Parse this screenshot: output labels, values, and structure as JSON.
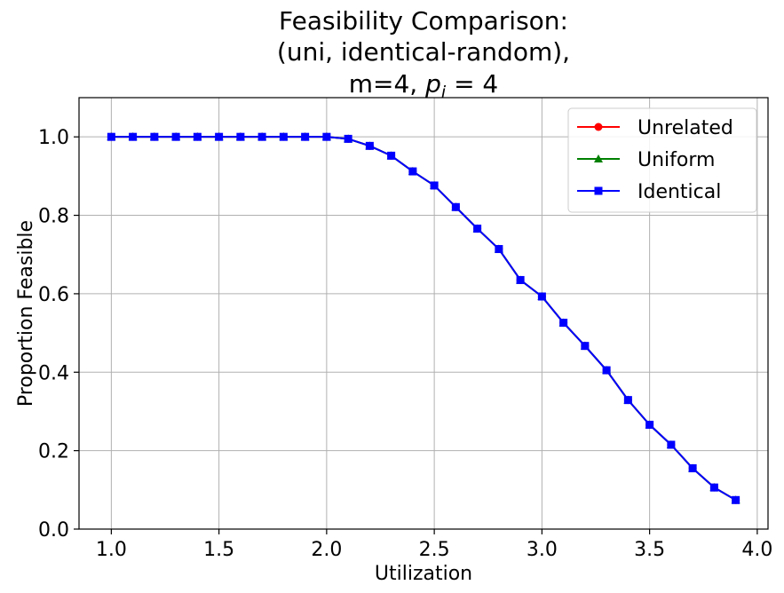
{
  "chart_data": {
    "type": "line",
    "title_lines": [
      "Feasibility Comparison:",
      "(uni, identical-random),"
    ],
    "title_line3": {
      "prefix": "m=4, ",
      "var": "p",
      "sub": "i",
      "suffix": " = 4"
    },
    "xlabel": "Utilization",
    "ylabel": "Proportion Feasible",
    "xlim": [
      0.85,
      4.05
    ],
    "ylim": [
      0.0,
      1.1
    ],
    "xticks": [
      1.0,
      1.5,
      2.0,
      2.5,
      3.0,
      3.5,
      4.0
    ],
    "xtick_labels": [
      "1.0",
      "1.5",
      "2.0",
      "2.5",
      "3.0",
      "3.5",
      "4.0"
    ],
    "yticks": [
      0.0,
      0.2,
      0.4,
      0.6,
      0.8,
      1.0
    ],
    "ytick_labels": [
      "0.0",
      "0.2",
      "0.4",
      "0.6",
      "0.8",
      "1.0"
    ],
    "grid": true,
    "legend_position": "top-right",
    "x": [
      1.0,
      1.1,
      1.2,
      1.3,
      1.4,
      1.5,
      1.6,
      1.7,
      1.8,
      1.9,
      2.0,
      2.1,
      2.2,
      2.3,
      2.4,
      2.5,
      2.6,
      2.7,
      2.8,
      2.9,
      3.0,
      3.1,
      3.2,
      3.3,
      3.4,
      3.5,
      3.6,
      3.7,
      3.8,
      3.9
    ],
    "series": [
      {
        "name": "Unrelated",
        "color": "#ff0000",
        "marker": "circle",
        "values": [
          1.0,
          1.0,
          1.0,
          1.0,
          1.0,
          1.0,
          1.0,
          1.0,
          1.0,
          1.0,
          1.0,
          0.995,
          0.977,
          0.952,
          0.912,
          0.876,
          0.821,
          0.766,
          0.714,
          0.635,
          0.593,
          0.526,
          0.467,
          0.405,
          0.329,
          0.266,
          0.215,
          0.155,
          0.106,
          0.074
        ]
      },
      {
        "name": "Uniform",
        "color": "#008000",
        "marker": "triangle",
        "values": [
          1.0,
          1.0,
          1.0,
          1.0,
          1.0,
          1.0,
          1.0,
          1.0,
          1.0,
          1.0,
          1.0,
          0.995,
          0.977,
          0.952,
          0.912,
          0.876,
          0.821,
          0.766,
          0.714,
          0.635,
          0.593,
          0.526,
          0.467,
          0.405,
          0.329,
          0.266,
          0.215,
          0.155,
          0.106,
          0.074
        ]
      },
      {
        "name": "Identical",
        "color": "#0000ff",
        "marker": "square",
        "values": [
          1.0,
          1.0,
          1.0,
          1.0,
          1.0,
          1.0,
          1.0,
          1.0,
          1.0,
          1.0,
          1.0,
          0.995,
          0.977,
          0.952,
          0.912,
          0.876,
          0.821,
          0.766,
          0.714,
          0.635,
          0.593,
          0.526,
          0.467,
          0.405,
          0.329,
          0.266,
          0.215,
          0.155,
          0.106,
          0.074
        ]
      }
    ]
  }
}
